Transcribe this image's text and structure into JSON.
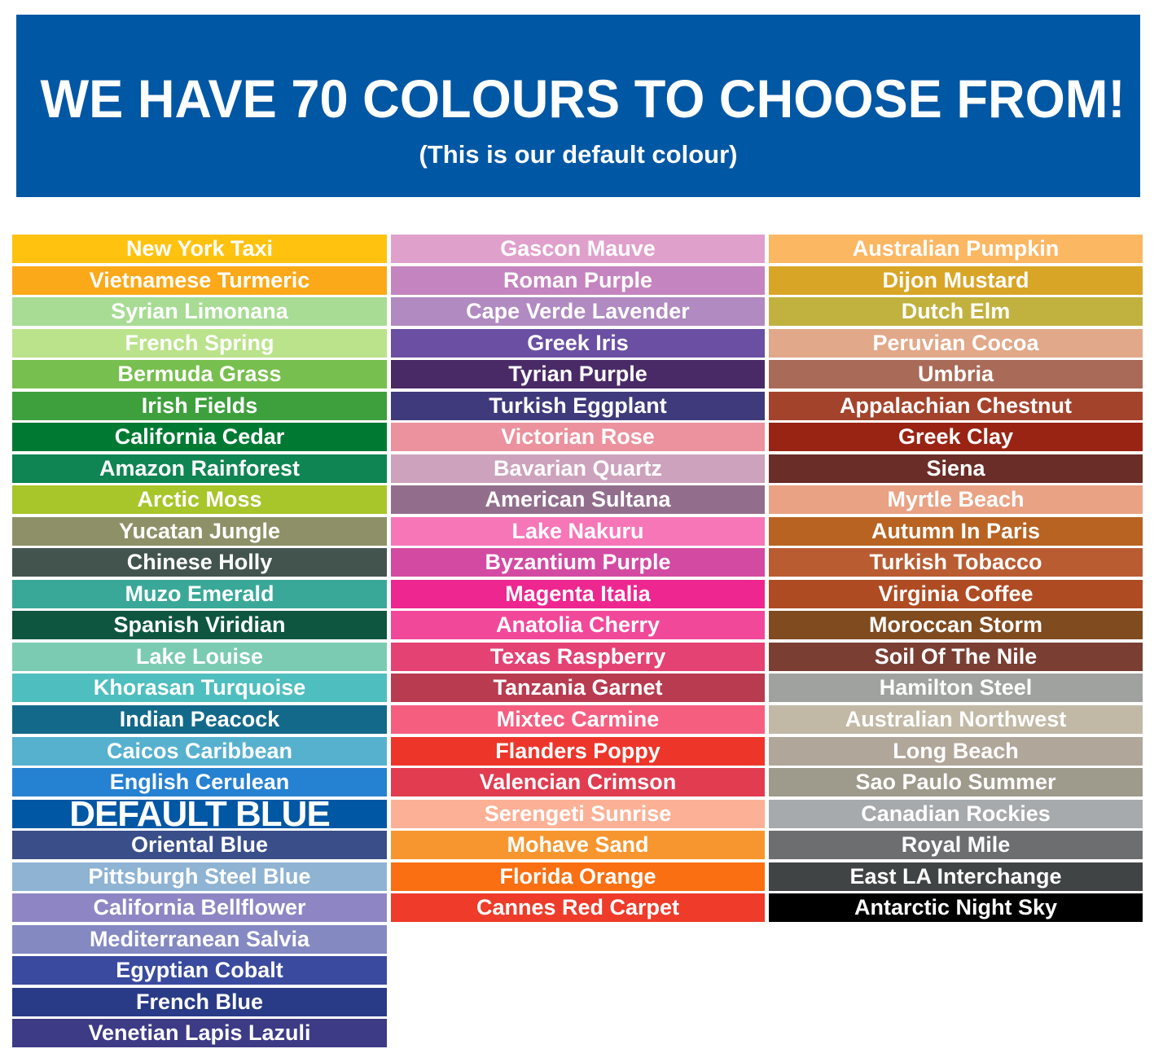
{
  "banner": {
    "title": "WE HAVE 70 COLOURS TO CHOOSE FROM!",
    "subtitle": "(This is our default colour)",
    "color": "#0057A4"
  },
  "columns": [
    [
      {
        "name": "New York Taxi",
        "color": "#FFC20E"
      },
      {
        "name": "Vietnamese Turmeric",
        "color": "#FBA919"
      },
      {
        "name": "Syrian Limonana",
        "color": "#A8DC95"
      },
      {
        "name": "French Spring",
        "color": "#BBE38B"
      },
      {
        "name": "Bermuda Grass",
        "color": "#77BF4E"
      },
      {
        "name": "Irish Fields",
        "color": "#3EA03D"
      },
      {
        "name": "California Cedar",
        "color": "#007A33"
      },
      {
        "name": "Amazon Rainforest",
        "color": "#0E8552"
      },
      {
        "name": "Arctic Moss",
        "color": "#A8C52A"
      },
      {
        "name": "Yucatan Jungle",
        "color": "#8E9067"
      },
      {
        "name": "Chinese Holly",
        "color": "#43544F"
      },
      {
        "name": "Muzo Emerald",
        "color": "#3AA898"
      },
      {
        "name": "Spanish Viridian",
        "color": "#0F5641"
      },
      {
        "name": "Lake Louise",
        "color": "#7BCBB2"
      },
      {
        "name": "Khorasan Turquoise",
        "color": "#4FBEBE"
      },
      {
        "name": "Indian Peacock",
        "color": "#13698A"
      },
      {
        "name": "Caicos Caribbean",
        "color": "#56B1CF"
      },
      {
        "name": "English Cerulean",
        "color": "#2581D2"
      },
      {
        "name": "DEFAULT BLUE",
        "color": "#0057A4",
        "default": true
      },
      {
        "name": "Oriental Blue",
        "color": "#3A4F8A"
      },
      {
        "name": "Pittsburgh Steel Blue",
        "color": "#8EB3D3"
      },
      {
        "name": "California Bellflower",
        "color": "#8E86C4"
      },
      {
        "name": "Mediterranean Salvia",
        "color": "#8489C2"
      },
      {
        "name": "Egyptian Cobalt",
        "color": "#3A4A9E"
      },
      {
        "name": "French Blue",
        "color": "#293B87"
      },
      {
        "name": "Venetian Lapis Lazuli",
        "color": "#3D3A86"
      }
    ],
    [
      {
        "name": "Gascon Mauve",
        "color": "#E0A0CC"
      },
      {
        "name": "Roman Purple",
        "color": "#C484BF"
      },
      {
        "name": "Cape Verde Lavender",
        "color": "#B08AC0"
      },
      {
        "name": "Greek Iris",
        "color": "#6B4FA3"
      },
      {
        "name": "Tyrian Purple",
        "color": "#4A2A66"
      },
      {
        "name": "Turkish Eggplant",
        "color": "#3F3A7C"
      },
      {
        "name": "Victorian Rose",
        "color": "#EB929E"
      },
      {
        "name": "Bavarian Quartz",
        "color": "#CDA2BC"
      },
      {
        "name": "American Sultana",
        "color": "#926E8C"
      },
      {
        "name": "Lake Nakuru",
        "color": "#F676B8"
      },
      {
        "name": "Byzantium Purple",
        "color": "#D34AA2"
      },
      {
        "name": "Magenta Italia",
        "color": "#EE2690"
      },
      {
        "name": "Anatolia Cherry",
        "color": "#F2489A"
      },
      {
        "name": "Texas Raspberry",
        "color": "#E54274"
      },
      {
        "name": "Tanzania Garnet",
        "color": "#B83B50"
      },
      {
        "name": "Mixtec Carmine",
        "color": "#F65E80"
      },
      {
        "name": "Flanders Poppy",
        "color": "#EE3529"
      },
      {
        "name": "Valencian Crimson",
        "color": "#E13C50"
      },
      {
        "name": "Serengeti Sunrise",
        "color": "#FCB196"
      },
      {
        "name": "Mohave Sand",
        "color": "#F7962E"
      },
      {
        "name": "Florida Orange",
        "color": "#FA6F12"
      },
      {
        "name": "Cannes Red Carpet",
        "color": "#EE3B2A"
      }
    ],
    [
      {
        "name": "Australian Pumpkin",
        "color": "#FCB763"
      },
      {
        "name": "Dijon Mustard",
        "color": "#D9A526"
      },
      {
        "name": "Dutch Elm",
        "color": "#C1B23F"
      },
      {
        "name": "Peruvian Cocoa",
        "color": "#E1A889"
      },
      {
        "name": "Umbria",
        "color": "#A96A58"
      },
      {
        "name": "Appalachian Chestnut",
        "color": "#A4432C"
      },
      {
        "name": "Greek Clay",
        "color": "#9A2413"
      },
      {
        "name": "Siena",
        "color": "#6A2D27"
      },
      {
        "name": "Myrtle Beach",
        "color": "#E9A283"
      },
      {
        "name": "Autumn In Paris",
        "color": "#B86321"
      },
      {
        "name": "Turkish Tobacco",
        "color": "#B95C32"
      },
      {
        "name": "Virginia Coffee",
        "color": "#AF4B22"
      },
      {
        "name": "Moroccan Storm",
        "color": "#7F4B1F"
      },
      {
        "name": "Soil Of The Nile",
        "color": "#7A3E33"
      },
      {
        "name": "Hamilton Steel",
        "color": "#A0A2A0"
      },
      {
        "name": "Australian Northwest",
        "color": "#C1B9A6"
      },
      {
        "name": "Long Beach",
        "color": "#B1A69A"
      },
      {
        "name": "Sao Paulo Summer",
        "color": "#9E9A8C"
      },
      {
        "name": "Canadian Rockies",
        "color": "#A7AAAC"
      },
      {
        "name": "Royal Mile",
        "color": "#6C6E70"
      },
      {
        "name": "East LA Interchange",
        "color": "#414444"
      },
      {
        "name": "Antarctic Night Sky",
        "color": "#000000"
      }
    ]
  ]
}
